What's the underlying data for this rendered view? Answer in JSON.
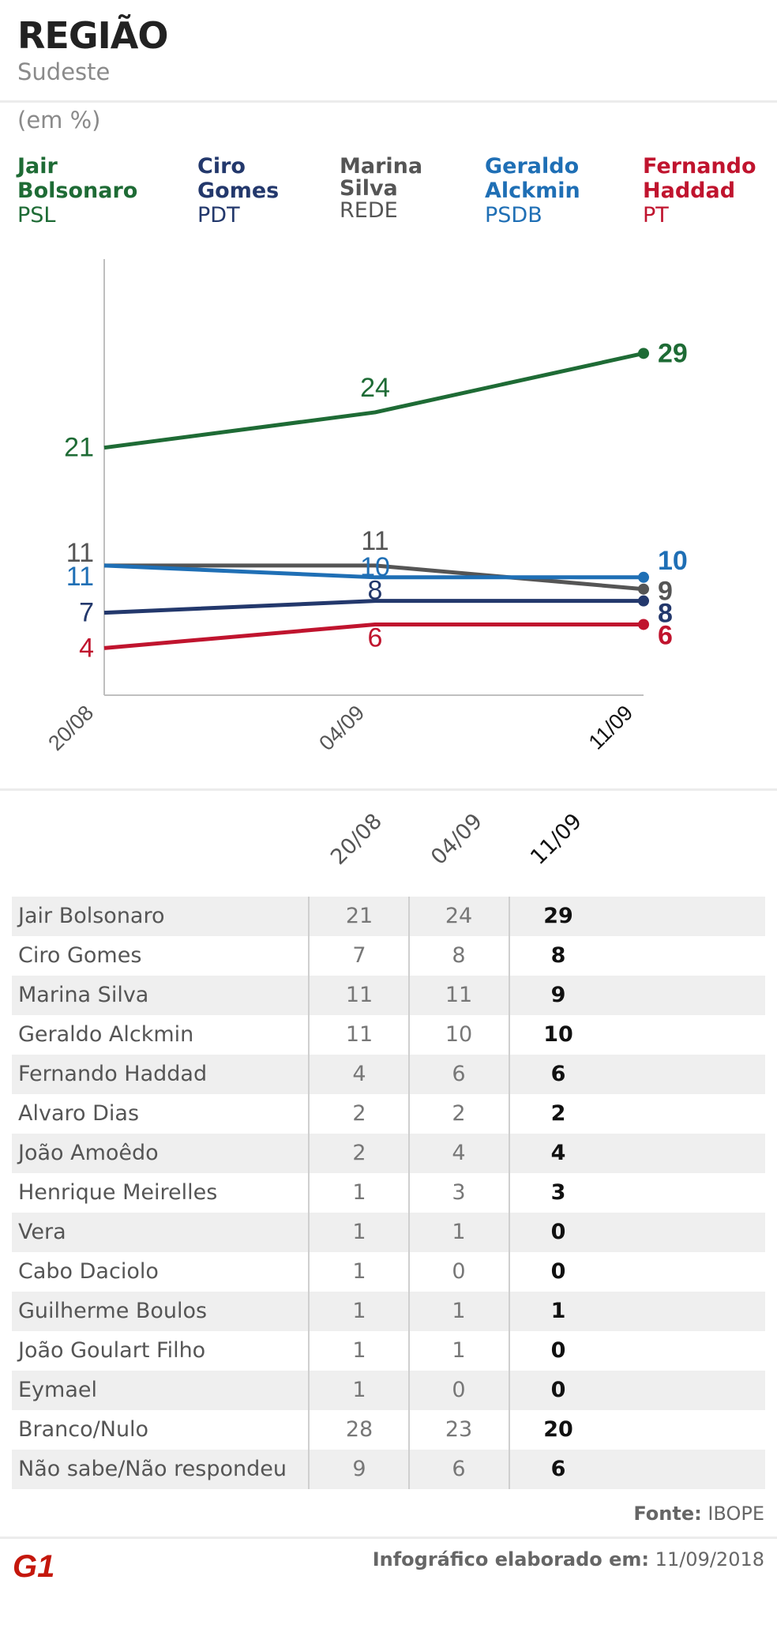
{
  "header": {
    "title": "REGIÃO",
    "subtitle": "Sudeste",
    "unit": "(em %)"
  },
  "legend": [
    {
      "name": "Jair Bolsonaro",
      "party": "PSL",
      "color": "#1e6b35"
    },
    {
      "name": "Ciro Gomes",
      "party": "PDT",
      "color": "#23386c"
    },
    {
      "name": "Marina Silva",
      "party": "REDE",
      "color": "#555555"
    },
    {
      "name": "Geraldo Alckmin",
      "party": "PSDB",
      "color": "#1f6fb5"
    },
    {
      "name": "Fernando Haddad",
      "party": "PT",
      "color": "#c0142e"
    }
  ],
  "chart_data": {
    "type": "line",
    "title": "REGIÃO Sudeste",
    "ylabel": "(em %)",
    "categories": [
      "20/08",
      "04/09",
      "11/09"
    ],
    "ylim": [
      0,
      37
    ],
    "series": [
      {
        "name": "Jair Bolsonaro",
        "values": [
          21,
          24,
          29
        ],
        "color": "#1e6b35"
      },
      {
        "name": "Marina Silva",
        "values": [
          11,
          11,
          9
        ],
        "color": "#555555"
      },
      {
        "name": "Geraldo Alckmin",
        "values": [
          11,
          10,
          10
        ],
        "color": "#1f6fb5"
      },
      {
        "name": "Ciro Gomes",
        "values": [
          7,
          8,
          8
        ],
        "color": "#23386c"
      },
      {
        "name": "Fernando Haddad",
        "values": [
          4,
          6,
          6
        ],
        "color": "#c0142e"
      }
    ]
  },
  "table": {
    "columns": [
      "20/08",
      "04/09",
      "11/09"
    ],
    "rows": [
      {
        "name": "Jair Bolsonaro",
        "v1": "21",
        "v2": "24",
        "v3": "29"
      },
      {
        "name": "Ciro Gomes",
        "v1": "7",
        "v2": "8",
        "v3": "8"
      },
      {
        "name": "Marina Silva",
        "v1": "11",
        "v2": "11",
        "v3": "9"
      },
      {
        "name": "Geraldo Alckmin",
        "v1": "11",
        "v2": "10",
        "v3": "10"
      },
      {
        "name": "Fernando Haddad",
        "v1": "4",
        "v2": "6",
        "v3": "6"
      },
      {
        "name": "Alvaro Dias",
        "v1": "2",
        "v2": "2",
        "v3": "2"
      },
      {
        "name": "João Amoêdo",
        "v1": "2",
        "v2": "4",
        "v3": "4"
      },
      {
        "name": "Henrique Meirelles",
        "v1": "1",
        "v2": "3",
        "v3": "3"
      },
      {
        "name": "Vera",
        "v1": "1",
        "v2": "1",
        "v3": "0"
      },
      {
        "name": "Cabo Daciolo",
        "v1": "1",
        "v2": "0",
        "v3": "0"
      },
      {
        "name": "Guilherme Boulos",
        "v1": "1",
        "v2": "1",
        "v3": "1"
      },
      {
        "name": "João Goulart Filho",
        "v1": "1",
        "v2": "1",
        "v3": "0"
      },
      {
        "name": "Eymael",
        "v1": "1",
        "v2": "0",
        "v3": "0"
      },
      {
        "name": "Branco/Nulo",
        "v1": "28",
        "v2": "23",
        "v3": "20"
      },
      {
        "name": "Não sabe/Não respondeu",
        "v1": "9",
        "v2": "6",
        "v3": "6"
      }
    ]
  },
  "footer": {
    "source_label": "Fonte:",
    "source": "IBOPE",
    "made_label": "Infográfico elaborado em:",
    "made_date": "11/09/2018",
    "logo_text": "G1",
    "logo_color": "#c4170c"
  }
}
